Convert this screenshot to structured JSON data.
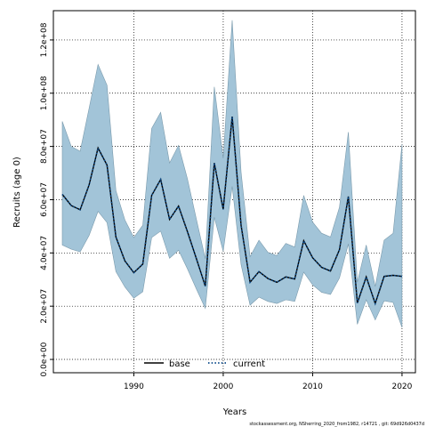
{
  "chart_data": {
    "type": "line",
    "xlabel": "Years",
    "ylabel": "Recruits (age 0)",
    "xlim": [
      1981,
      2021.5
    ],
    "ylim": [
      -5000000,
      131000000
    ],
    "x_ticks": [
      1990,
      2000,
      2010,
      2020
    ],
    "y_ticks": [
      0,
      20000000,
      40000000,
      60000000,
      80000000,
      100000000,
      120000000
    ],
    "y_tick_labels": [
      "0.0e+00",
      "2.0e+07",
      "4.0e+07",
      "6.0e+07",
      "8.0e+07",
      "1.0e+08",
      "1.2e+08"
    ],
    "grid": true,
    "legend_position": "bottom",
    "x": [
      1982,
      1983,
      1984,
      1985,
      1986,
      1987,
      1988,
      1989,
      1990,
      1991,
      1992,
      1993,
      1994,
      1995,
      1996,
      1997,
      1998,
      1999,
      2000,
      2001,
      2002,
      2003,
      2004,
      2005,
      2006,
      2007,
      2008,
      2009,
      2010,
      2011,
      2012,
      2013,
      2014,
      2015,
      2016,
      2017,
      2018,
      2019,
      2020
    ],
    "series": [
      {
        "name": "base",
        "color": "#000000",
        "style": "solid",
        "values": [
          62000000,
          57800000,
          56200000,
          65600000,
          79400000,
          73000000,
          46000000,
          37000000,
          32600000,
          35800000,
          61600000,
          67600000,
          52600000,
          57600000,
          48000000,
          37800000,
          27500000,
          73800000,
          56400000,
          91200000,
          50400000,
          29000000,
          33000000,
          30400000,
          29000000,
          31000000,
          30200000,
          44600000,
          38200000,
          34600000,
          33200000,
          41200000,
          61200000,
          21200000,
          31000000,
          21000000,
          31200000,
          31600000,
          31200000
        ]
      },
      {
        "name": "current",
        "color": "#0a4a8a",
        "style": "dotted",
        "values": [
          62000000,
          57800000,
          56200000,
          65600000,
          79400000,
          73000000,
          46000000,
          37000000,
          32600000,
          35800000,
          61600000,
          67600000,
          52600000,
          57600000,
          48000000,
          37800000,
          27500000,
          73800000,
          56400000,
          91200000,
          50400000,
          29000000,
          33000000,
          30400000,
          29000000,
          31000000,
          30200000,
          44600000,
          38200000,
          34600000,
          33200000,
          41200000,
          61200000,
          21200000,
          31000000,
          21000000,
          31200000,
          31600000,
          31200000
        ]
      }
    ],
    "band": {
      "color": "#a2c4d8",
      "upper": [
        89400000,
        80000000,
        78200000,
        94400000,
        110800000,
        103000000,
        63400000,
        52400000,
        45800000,
        50400000,
        86800000,
        92800000,
        73800000,
        80400000,
        67800000,
        52600000,
        37800000,
        102400000,
        75600000,
        127400000,
        70400000,
        38600000,
        44800000,
        40200000,
        39000000,
        43600000,
        42200000,
        61600000,
        51600000,
        47400000,
        46000000,
        57200000,
        85400000,
        29000000,
        43000000,
        27400000,
        44800000,
        47400000,
        80800000
      ],
      "lower": [
        43000000,
        41400000,
        40400000,
        46600000,
        55600000,
        51400000,
        33000000,
        27200000,
        23000000,
        25400000,
        45800000,
        48200000,
        38000000,
        41000000,
        34000000,
        26400000,
        19200000,
        53400000,
        40600000,
        65000000,
        35600000,
        20400000,
        23400000,
        21800000,
        21000000,
        22400000,
        21800000,
        32800000,
        28000000,
        25200000,
        24400000,
        30600000,
        43400000,
        13200000,
        22400000,
        14800000,
        22000000,
        21400000,
        12000000
      ]
    }
  },
  "footer_text": "stockassessment.org, NSherring_2020_from1982, r14721 , git: 69d926d0437d"
}
